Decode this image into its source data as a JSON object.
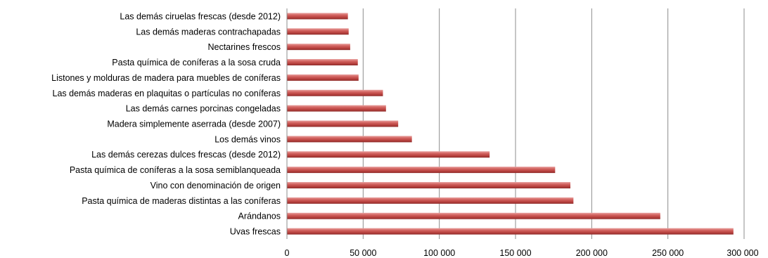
{
  "chart_data": {
    "type": "bar",
    "orientation": "horizontal",
    "categories": [
      "Uvas frescas",
      "Arándanos",
      "Pasta química de maderas distintas a las coníferas",
      "Vino con denominación de origen",
      "Pasta química de coníferas a la sosa  semiblanqueada",
      "Las demás cerezas dulces frescas (desde 2012)",
      "Los demás vinos",
      "Madera simplemente aserrada (desde 2007)",
      "Las demás carnes porcinas congeladas",
      "Las demás maderas en plaquitas o partículas no coníferas",
      "Listones y molduras de madera para muebles de coníferas",
      "Pasta química de coníferas a la sosa  cruda",
      "Nectarines frescos",
      "Las demás maderas contrachapadas",
      "Las demás ciruelas frescas (desde 2012)"
    ],
    "values": [
      293000,
      245000,
      188000,
      186000,
      176000,
      133000,
      82000,
      73000,
      65000,
      63000,
      47000,
      46500,
      41500,
      40500,
      40000
    ],
    "xlim": [
      0,
      300000
    ],
    "xticks": [
      0,
      50000,
      100000,
      150000,
      200000,
      250000,
      300000
    ],
    "xtick_labels": [
      "0",
      "50 000",
      "100 000",
      "150 000",
      "200 000",
      "250 000",
      "300 000"
    ],
    "grid": "vertical",
    "bar_color": "#C0504D",
    "legend": "none",
    "title": "",
    "xlabel": "",
    "ylabel": ""
  }
}
